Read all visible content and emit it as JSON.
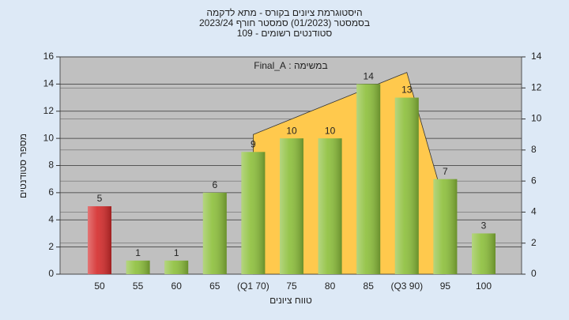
{
  "chart_data": {
    "type": "bar",
    "title": "היסטוגרמת ציונים בקורס - מתא לדקמה",
    "subtitle": "בסמסטר (01/2023) סמסטר חורף 2023/24",
    "subtitle2": "סטודנטים רשומים - 109",
    "annotation": "במשימה : Final_A",
    "x_label": "טווח ציונים",
    "y_label": "מספר סטודנטים",
    "categories": [
      "50",
      "55",
      "60",
      "65",
      "(Q1 70)",
      "75",
      "80",
      "85",
      "(Q3 90)",
      "95",
      "100"
    ],
    "values": [
      5,
      1,
      1,
      6,
      9,
      10,
      10,
      14,
      13,
      7,
      3
    ],
    "colors": [
      "#d42a2a",
      "#8cbf3a",
      "#8cbf3a",
      "#8cbf3a",
      "#8cbf3a",
      "#8cbf3a",
      "#8cbf3a",
      "#8cbf3a",
      "#8cbf3a",
      "#8cbf3a",
      "#8cbf3a"
    ],
    "overlay": {
      "axis": "y2",
      "color": "#ffc94d",
      "values": [
        null,
        null,
        null,
        null,
        9,
        10,
        11,
        12,
        13,
        4.4,
        null
      ]
    },
    "ylim": [
      0,
      16
    ],
    "yticks": [
      0,
      2,
      4,
      6,
      8,
      10,
      12,
      14,
      16
    ],
    "y2lim": [
      0,
      14
    ],
    "y2ticks": [
      0,
      2,
      4,
      6,
      8,
      10,
      12,
      14
    ],
    "grid": true
  }
}
